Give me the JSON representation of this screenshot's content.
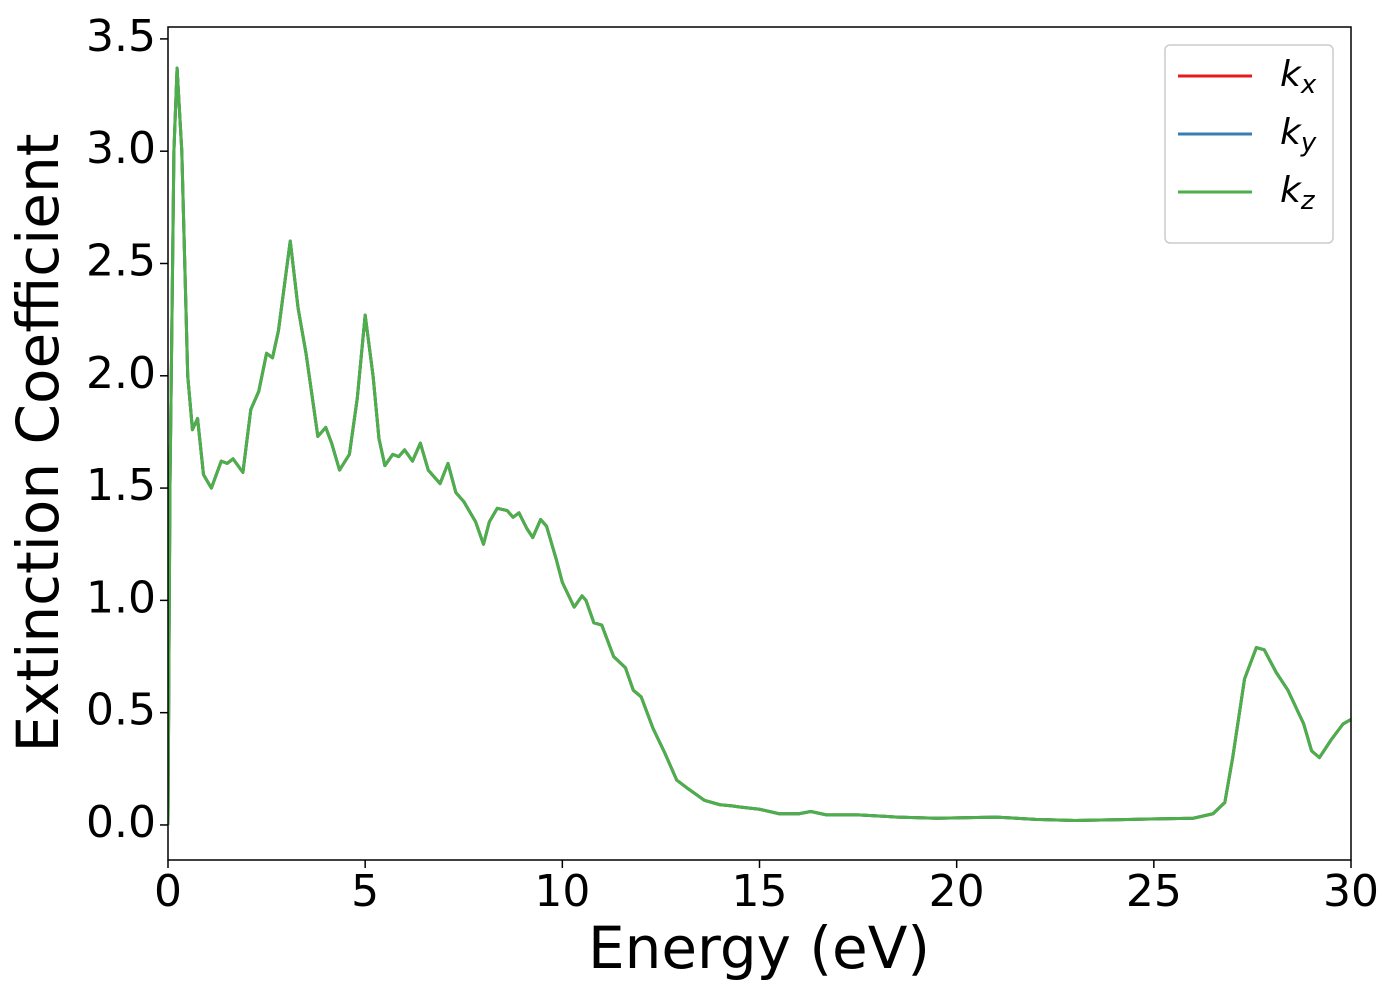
{
  "chart_data": {
    "type": "line",
    "xlabel": "Energy (eV)",
    "ylabel": "Extinction Coefficient",
    "x": [
      0,
      0.05,
      0.15,
      0.23,
      0.35,
      0.5,
      0.62,
      0.75,
      0.9,
      1.1,
      1.35,
      1.5,
      1.65,
      1.9,
      2.1,
      2.3,
      2.5,
      2.65,
      2.8,
      3.1,
      3.3,
      3.5,
      3.8,
      4.0,
      4.15,
      4.35,
      4.6,
      4.8,
      5.0,
      5.2,
      5.35,
      5.5,
      5.7,
      5.85,
      6.0,
      6.2,
      6.4,
      6.6,
      6.9,
      7.1,
      7.3,
      7.5,
      7.8,
      8.0,
      8.15,
      8.35,
      8.6,
      8.75,
      8.9,
      9.1,
      9.25,
      9.45,
      9.6,
      9.85,
      10.0,
      10.3,
      10.5,
      10.6,
      10.8,
      11.0,
      11.3,
      11.6,
      11.8,
      12.0,
      12.3,
      12.6,
      12.9,
      13.2,
      13.6,
      14.0,
      14.3,
      14.5,
      15.0,
      15.5,
      16.0,
      16.3,
      16.7,
      17.5,
      18.5,
      19.5,
      21.0,
      22.0,
      23.0,
      24.5,
      26.0,
      26.5,
      26.8,
      27.0,
      27.3,
      27.6,
      27.8,
      28.1,
      28.4,
      28.8,
      29.0,
      29.2,
      29.5,
      29.8,
      30.0
    ],
    "series": [
      {
        "name": "kx",
        "color": "#e41a1c",
        "values": [
          0,
          1.5,
          3.0,
          3.37,
          3.0,
          2.0,
          1.76,
          1.81,
          1.56,
          1.5,
          1.62,
          1.61,
          1.63,
          1.57,
          1.85,
          1.93,
          2.1,
          2.08,
          2.2,
          2.6,
          2.3,
          2.1,
          1.73,
          1.77,
          1.7,
          1.58,
          1.65,
          1.9,
          2.27,
          2.0,
          1.72,
          1.6,
          1.65,
          1.64,
          1.67,
          1.62,
          1.7,
          1.58,
          1.52,
          1.61,
          1.48,
          1.44,
          1.35,
          1.25,
          1.35,
          1.41,
          1.4,
          1.37,
          1.39,
          1.32,
          1.28,
          1.36,
          1.33,
          1.18,
          1.08,
          0.97,
          1.02,
          1.0,
          0.9,
          0.89,
          0.75,
          0.7,
          0.6,
          0.57,
          0.43,
          0.32,
          0.2,
          0.16,
          0.11,
          0.09,
          0.085,
          0.08,
          0.07,
          0.05,
          0.05,
          0.06,
          0.045,
          0.045,
          0.035,
          0.03,
          0.035,
          0.025,
          0.02,
          0.025,
          0.03,
          0.05,
          0.1,
          0.3,
          0.65,
          0.79,
          0.78,
          0.68,
          0.6,
          0.45,
          0.33,
          0.3,
          0.38,
          0.45,
          0.47
        ]
      },
      {
        "name": "ky",
        "color": "#377eb8",
        "values": [
          0,
          1.5,
          3.0,
          3.37,
          3.0,
          2.0,
          1.76,
          1.81,
          1.56,
          1.5,
          1.62,
          1.61,
          1.63,
          1.57,
          1.85,
          1.93,
          2.1,
          2.08,
          2.2,
          2.6,
          2.3,
          2.1,
          1.73,
          1.77,
          1.7,
          1.58,
          1.65,
          1.9,
          2.27,
          2.0,
          1.72,
          1.6,
          1.65,
          1.64,
          1.67,
          1.62,
          1.7,
          1.58,
          1.52,
          1.61,
          1.48,
          1.44,
          1.35,
          1.25,
          1.35,
          1.41,
          1.4,
          1.37,
          1.39,
          1.32,
          1.28,
          1.36,
          1.33,
          1.18,
          1.08,
          0.97,
          1.02,
          1.0,
          0.9,
          0.89,
          0.75,
          0.7,
          0.6,
          0.57,
          0.43,
          0.32,
          0.2,
          0.16,
          0.11,
          0.09,
          0.085,
          0.08,
          0.07,
          0.05,
          0.05,
          0.06,
          0.045,
          0.045,
          0.035,
          0.03,
          0.035,
          0.025,
          0.02,
          0.025,
          0.03,
          0.05,
          0.1,
          0.3,
          0.65,
          0.79,
          0.78,
          0.68,
          0.6,
          0.45,
          0.33,
          0.3,
          0.38,
          0.45,
          0.47
        ]
      },
      {
        "name": "kz",
        "color": "#4daf4a",
        "values": [
          0,
          1.5,
          3.0,
          3.37,
          3.0,
          2.0,
          1.76,
          1.81,
          1.56,
          1.5,
          1.62,
          1.61,
          1.63,
          1.57,
          1.85,
          1.93,
          2.1,
          2.08,
          2.2,
          2.6,
          2.3,
          2.1,
          1.73,
          1.77,
          1.7,
          1.58,
          1.65,
          1.9,
          2.27,
          2.0,
          1.72,
          1.6,
          1.65,
          1.64,
          1.67,
          1.62,
          1.7,
          1.58,
          1.52,
          1.61,
          1.48,
          1.44,
          1.35,
          1.25,
          1.35,
          1.41,
          1.4,
          1.37,
          1.39,
          1.32,
          1.28,
          1.36,
          1.33,
          1.18,
          1.08,
          0.97,
          1.02,
          1.0,
          0.9,
          0.89,
          0.75,
          0.7,
          0.6,
          0.57,
          0.43,
          0.32,
          0.2,
          0.16,
          0.11,
          0.09,
          0.085,
          0.08,
          0.07,
          0.05,
          0.05,
          0.06,
          0.045,
          0.045,
          0.035,
          0.03,
          0.035,
          0.025,
          0.02,
          0.025,
          0.03,
          0.05,
          0.1,
          0.3,
          0.65,
          0.79,
          0.78,
          0.68,
          0.6,
          0.45,
          0.33,
          0.3,
          0.38,
          0.45,
          0.47
        ]
      }
    ],
    "xlim": [
      0,
      30
    ],
    "xticks": [
      0,
      5,
      10,
      15,
      20,
      25,
      30
    ],
    "ylim": [
      -0.156,
      3.553
    ],
    "yticks": [
      {
        "value": 0,
        "label": "0.0"
      },
      0.5,
      {
        "value": 1,
        "label": "1.0"
      },
      1.5,
      {
        "value": 2,
        "label": "2.0"
      },
      2.5,
      {
        "value": 3,
        "label": "3.0"
      },
      3.5
    ],
    "grid": false,
    "legend": "upper right"
  }
}
